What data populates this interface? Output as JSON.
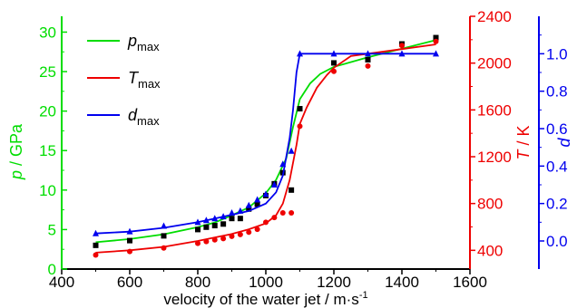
{
  "chart_data": {
    "type": "line",
    "xlabel_main": "velocity of the water jet / m·s",
    "xlabel_sup": "-1",
    "xlim": [
      400,
      1600
    ],
    "xticks": [
      400,
      600,
      800,
      1000,
      1200,
      1400,
      1600
    ],
    "axes": {
      "p": {
        "label_italic": "p",
        "label_rest": " / GPa",
        "color": "#00dd00",
        "lim": [
          0,
          32
        ],
        "ticks": [
          0,
          5,
          10,
          15,
          20,
          25,
          30
        ]
      },
      "T": {
        "label_italic": "T",
        "label_rest": " / K",
        "color": "#ee0000",
        "lim": [
          240,
          2400
        ],
        "ticks": [
          400,
          800,
          1200,
          1600,
          2000,
          2400
        ]
      },
      "d": {
        "label_italic": "d",
        "label_rest": "",
        "color": "#0000ee",
        "lim": [
          -0.15,
          1.2
        ],
        "ticks": [
          "0.0",
          "0.2",
          "0.4",
          "0.6",
          "0.8",
          "1.0"
        ]
      }
    },
    "legend": {
      "placement": "top-left",
      "entries": [
        {
          "key": "p",
          "base": "p",
          "sub": "max",
          "color": "#00dd00"
        },
        {
          "key": "T",
          "base": "T",
          "sub": "max",
          "color": "#ee0000"
        },
        {
          "key": "d",
          "base": "d",
          "sub": "max",
          "color": "#0000ee"
        }
      ]
    },
    "series": [
      {
        "key": "p",
        "axis": "p",
        "color": "#00dd00",
        "marker": "square",
        "marker_color": "#000000",
        "line": [
          [
            500,
            3.4
          ],
          [
            600,
            3.8
          ],
          [
            700,
            4.4
          ],
          [
            800,
            5.3
          ],
          [
            850,
            5.9
          ],
          [
            900,
            6.8
          ],
          [
            950,
            7.8
          ],
          [
            1000,
            9.6
          ],
          [
            1030,
            11.3
          ],
          [
            1060,
            14.0
          ],
          [
            1080,
            18.0
          ],
          [
            1100,
            21.5
          ],
          [
            1130,
            23.5
          ],
          [
            1160,
            24.7
          ],
          [
            1200,
            25.6
          ],
          [
            1300,
            26.8
          ],
          [
            1400,
            27.9
          ],
          [
            1500,
            29.0
          ]
        ],
        "points": [
          [
            500,
            3.0
          ],
          [
            600,
            3.6
          ],
          [
            700,
            4.2
          ],
          [
            800,
            5.0
          ],
          [
            825,
            5.3
          ],
          [
            850,
            5.5
          ],
          [
            875,
            5.7
          ],
          [
            900,
            6.4
          ],
          [
            925,
            6.4
          ],
          [
            950,
            7.6
          ],
          [
            975,
            8.2
          ],
          [
            1000,
            9.3
          ],
          [
            1025,
            10.8
          ],
          [
            1050,
            12.2
          ],
          [
            1075,
            10.0
          ],
          [
            1100,
            20.3
          ],
          [
            1200,
            26.1
          ],
          [
            1300,
            26.5
          ],
          [
            1400,
            28.5
          ],
          [
            1500,
            29.3
          ]
        ]
      },
      {
        "key": "T",
        "axis": "T",
        "color": "#ee0000",
        "marker": "circle",
        "marker_color": "#ee0000",
        "line": [
          [
            500,
            380
          ],
          [
            600,
            400
          ],
          [
            700,
            430
          ],
          [
            800,
            480
          ],
          [
            850,
            510
          ],
          [
            900,
            540
          ],
          [
            950,
            580
          ],
          [
            1000,
            630
          ],
          [
            1030,
            700
          ],
          [
            1050,
            800
          ],
          [
            1070,
            1000
          ],
          [
            1090,
            1300
          ],
          [
            1100,
            1480
          ],
          [
            1120,
            1620
          ],
          [
            1150,
            1790
          ],
          [
            1180,
            1900
          ],
          [
            1200,
            1960
          ],
          [
            1250,
            2060
          ],
          [
            1300,
            2080
          ],
          [
            1400,
            2120
          ],
          [
            1500,
            2160
          ]
        ],
        "points": [
          [
            500,
            360
          ],
          [
            600,
            390
          ],
          [
            700,
            420
          ],
          [
            800,
            460
          ],
          [
            825,
            475
          ],
          [
            850,
            490
          ],
          [
            875,
            500
          ],
          [
            900,
            520
          ],
          [
            925,
            535
          ],
          [
            950,
            555
          ],
          [
            975,
            580
          ],
          [
            1000,
            640
          ],
          [
            1025,
            680
          ],
          [
            1050,
            720
          ],
          [
            1075,
            720
          ],
          [
            1100,
            1460
          ],
          [
            1200,
            1930
          ],
          [
            1300,
            1975
          ],
          [
            1400,
            2150
          ],
          [
            1500,
            2185
          ]
        ]
      },
      {
        "key": "d",
        "axis": "d",
        "color": "#0000ee",
        "marker": "triangle",
        "marker_color": "#0000ee",
        "line": [
          [
            500,
            0.04
          ],
          [
            600,
            0.05
          ],
          [
            700,
            0.07
          ],
          [
            800,
            0.1
          ],
          [
            850,
            0.12
          ],
          [
            900,
            0.14
          ],
          [
            950,
            0.16
          ],
          [
            1000,
            0.2
          ],
          [
            1030,
            0.26
          ],
          [
            1050,
            0.35
          ],
          [
            1070,
            0.55
          ],
          [
            1080,
            0.7
          ],
          [
            1090,
            0.9
          ],
          [
            1100,
            1.0
          ],
          [
            1200,
            1.0
          ],
          [
            1300,
            1.0
          ],
          [
            1400,
            1.0
          ],
          [
            1500,
            1.0
          ]
        ],
        "points": [
          [
            500,
            0.04
          ],
          [
            600,
            0.05
          ],
          [
            700,
            0.08
          ],
          [
            800,
            0.1
          ],
          [
            825,
            0.11
          ],
          [
            850,
            0.12
          ],
          [
            875,
            0.13
          ],
          [
            900,
            0.15
          ],
          [
            925,
            0.16
          ],
          [
            950,
            0.19
          ],
          [
            975,
            0.22
          ],
          [
            1000,
            0.25
          ],
          [
            1025,
            0.3
          ],
          [
            1050,
            0.41
          ],
          [
            1075,
            0.48
          ],
          [
            1100,
            1.0
          ],
          [
            1200,
            1.0
          ],
          [
            1300,
            1.0
          ],
          [
            1400,
            1.0
          ],
          [
            1500,
            1.0
          ]
        ]
      }
    ]
  }
}
